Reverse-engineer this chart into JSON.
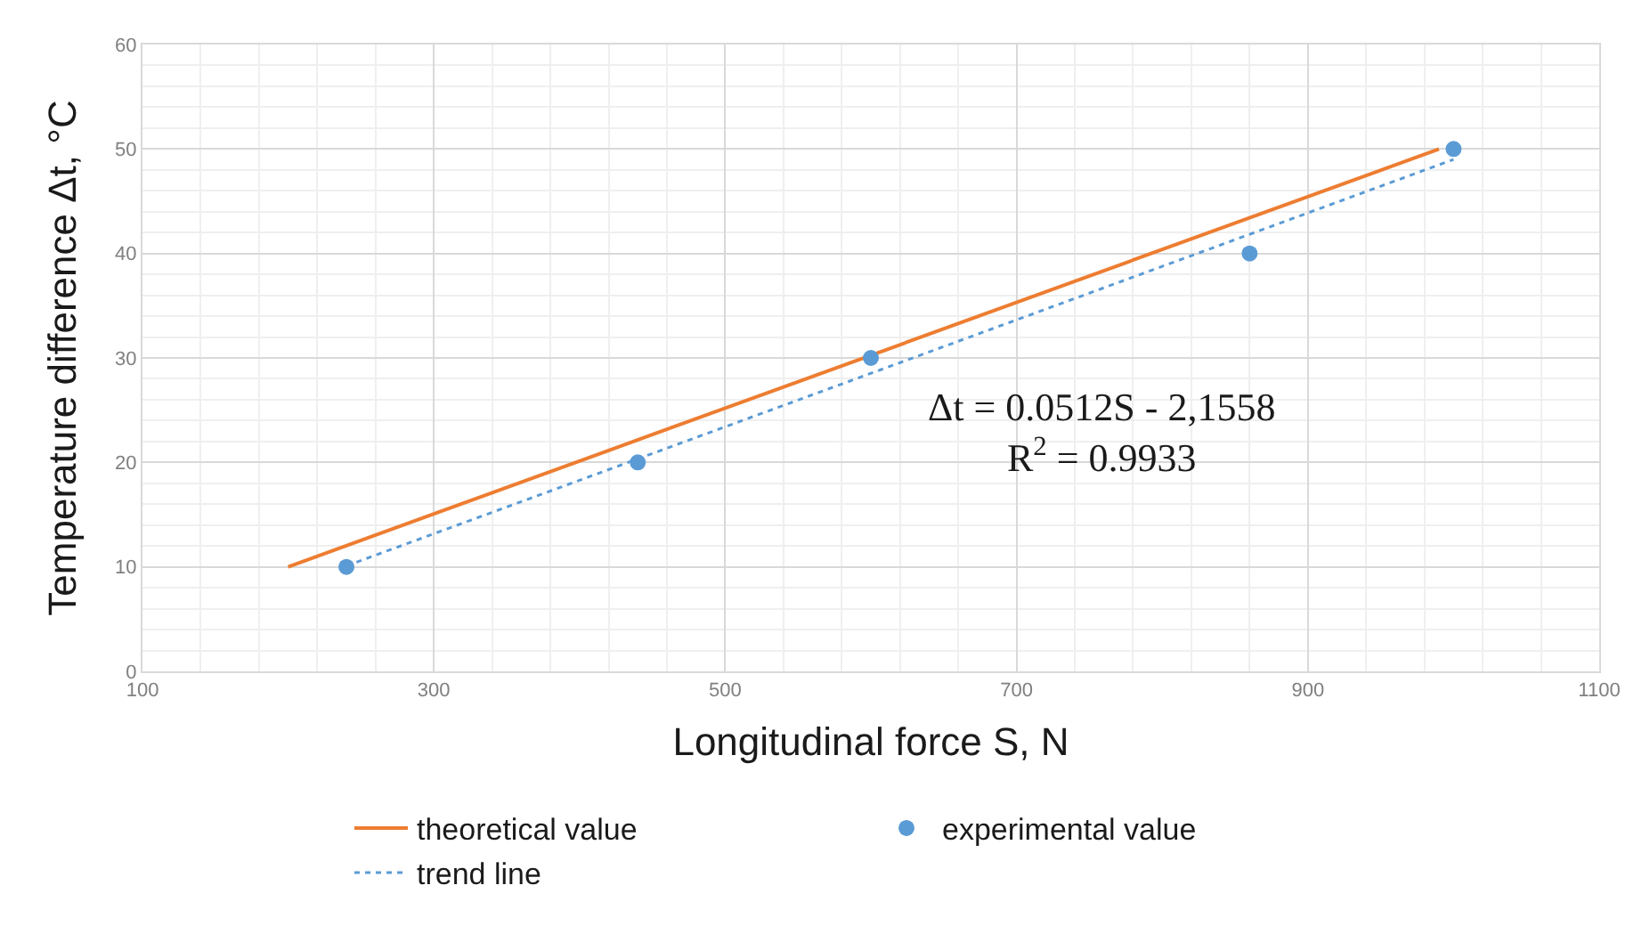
{
  "chart_data": {
    "type": "line",
    "xlabel": "Longitudinal force S, N",
    "ylabel": "Temperature difference Δt, °C",
    "xlim": [
      100,
      1100
    ],
    "xticks": [
      100,
      300,
      500,
      700,
      900,
      1100
    ],
    "ylim": [
      0,
      60
    ],
    "yticks": [
      0,
      10,
      20,
      30,
      40,
      50,
      60
    ],
    "grid": true,
    "legend": "bottom",
    "series": [
      {
        "name": "theoretical value",
        "color": "#ed7d31",
        "line_style": "solid",
        "marker": "none",
        "x": [
          200,
          990
        ],
        "values": [
          10,
          50
        ]
      },
      {
        "name": "experimental value",
        "type": "scatter",
        "color": "#5b9bd5",
        "marker": "circle",
        "x": [
          240,
          440,
          600,
          860,
          1000
        ],
        "values": [
          10,
          20,
          30,
          40,
          50
        ]
      },
      {
        "name": "trend line",
        "color": "#5b9bd5",
        "line_style": "dotted",
        "marker": "none",
        "x": [
          240,
          1000
        ],
        "values": [
          10.1,
          49.0
        ]
      }
    ],
    "annotations": [
      "Δt = 0.0512S - 2,1558\nR$^{2}$ = 0.9933"
    ]
  }
}
